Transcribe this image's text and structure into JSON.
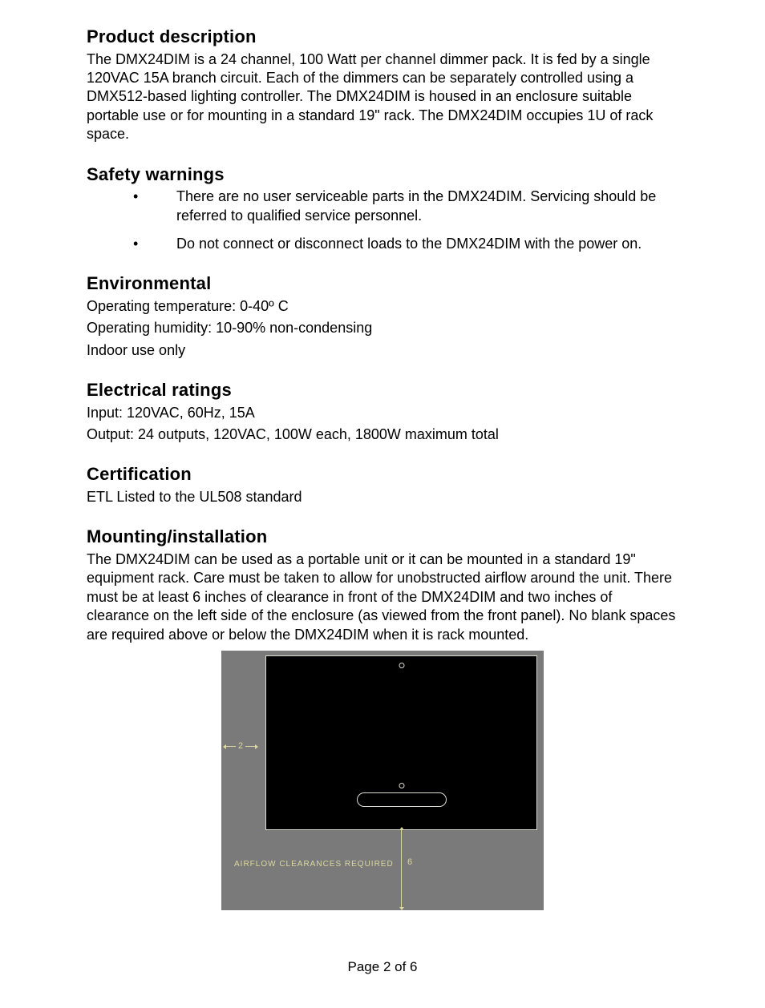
{
  "sections": {
    "product": {
      "heading": "Product description",
      "body": "The DMX24DIM is a 24 channel, 100 Watt per channel dimmer pack.  It is fed by a single 120VAC 15A branch circuit.  Each of the dimmers can be separately controlled using a DMX512-based lighting controller.  The DMX24DIM is housed in an enclosure suitable portable use or for mounting in a standard 19\" rack.  The DMX24DIM occupies 1U of rack space."
    },
    "safety": {
      "heading": "Safety warnings",
      "items": [
        "There are no user serviceable parts in the DMX24DIM.  Servicing should be referred to qualified service personnel.",
        "Do not connect or disconnect loads to the DMX24DIM with the power on."
      ]
    },
    "env": {
      "heading": "Environmental",
      "lines": [
        "Operating temperature: 0-40º C",
        "Operating humidity: 10-90% non-condensing",
        "Indoor use only"
      ]
    },
    "elec": {
      "heading": "Electrical ratings",
      "lines": [
        "Input: 120VAC, 60Hz, 15A",
        "Output: 24 outputs, 120VAC, 100W each, 1800W maximum total"
      ]
    },
    "cert": {
      "heading": "Certification",
      "body": "ETL Listed to the UL508 standard"
    },
    "mount": {
      "heading": "Mounting/installation",
      "body": "The DMX24DIM can be used as a portable unit or it can be mounted in a standard 19\" equipment rack.  Care must be taken to allow for unobstructed airflow around the unit.  There must be at least 6 inches of clearance in front of the DMX24DIM and two inches of clearance on the left side of the enclosure (as viewed from the front panel).  No blank spaces are required above or below the DMX24DIM when it is rack mounted."
    }
  },
  "diagram": {
    "type": "diagram",
    "background_color": "#7a7a7a",
    "unit_fill": "#000000",
    "line_color": "#dcdccf",
    "label_color": "#dcd8a0",
    "left_clearance_label": "2",
    "front_clearance_label": "6",
    "airflow_label": "AIRFLOW CLEARANCES REQUIRED",
    "left_clearance_inches": 2,
    "front_clearance_inches": 6
  },
  "footer": {
    "text": "Page 2 of 6",
    "page": 2,
    "total": 6
  }
}
